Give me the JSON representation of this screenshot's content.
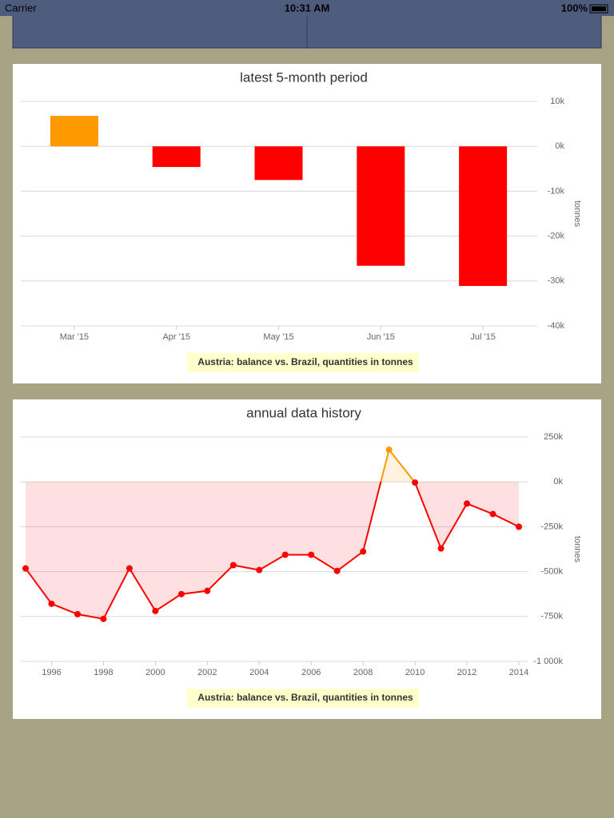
{
  "status_bar": {
    "carrier": "Carrier",
    "time": "10:31 AM",
    "battery": "100%"
  },
  "chart_data": [
    {
      "type": "bar",
      "title": "latest 5-month period",
      "categories": [
        "Mar '15",
        "Apr '15",
        "May '15",
        "Jun '15",
        "Jul '15"
      ],
      "values": [
        6800,
        -4600,
        -7500,
        -26600,
        -31100
      ],
      "positive_color": "#ff9900",
      "negative_color": "#ff0000",
      "ylim": [
        -40000,
        10000
      ],
      "yticks": [
        {
          "value": 10000,
          "label": "10k"
        },
        {
          "value": 0,
          "label": "0k"
        },
        {
          "value": -10000,
          "label": "-10k"
        },
        {
          "value": -20000,
          "label": "-20k"
        },
        {
          "value": -30000,
          "label": "-30k"
        },
        {
          "value": -40000,
          "label": "-40k"
        }
      ],
      "y_label": "tonnes",
      "grid": true,
      "caption": "Austria: balance vs. Brazil, quantities in tonnes"
    },
    {
      "type": "line",
      "title": "annual data history",
      "x": [
        1995,
        1996,
        1997,
        1998,
        1999,
        2000,
        2001,
        2002,
        2003,
        2004,
        2005,
        2006,
        2007,
        2008,
        2009,
        2010,
        2011,
        2012,
        2013,
        2014
      ],
      "values": [
        -482000,
        -679000,
        -737000,
        -763000,
        -482000,
        -719000,
        -625000,
        -607000,
        -464000,
        -491000,
        -406000,
        -406000,
        -496000,
        -388000,
        179000,
        -4000,
        -371000,
        -121000,
        -179000,
        -250000
      ],
      "positive_color": "#ff9900",
      "negative_color": "#ff0000",
      "xlim": [
        1995,
        2014
      ],
      "xticks": [
        1996,
        1998,
        2000,
        2002,
        2004,
        2006,
        2008,
        2010,
        2012,
        2014
      ],
      "ylim": [
        -1000000,
        250000
      ],
      "yticks": [
        {
          "value": 250000,
          "label": "250k"
        },
        {
          "value": 0,
          "label": "0k"
        },
        {
          "value": -250000,
          "label": "-250k"
        },
        {
          "value": -500000,
          "label": "-500k"
        },
        {
          "value": -750000,
          "label": "-750k"
        },
        {
          "value": -1000000,
          "label": "-1 000k"
        }
      ],
      "y_label": "tonnes",
      "grid": true,
      "caption": "Austria: balance vs. Brazil, quantities in tonnes"
    }
  ]
}
